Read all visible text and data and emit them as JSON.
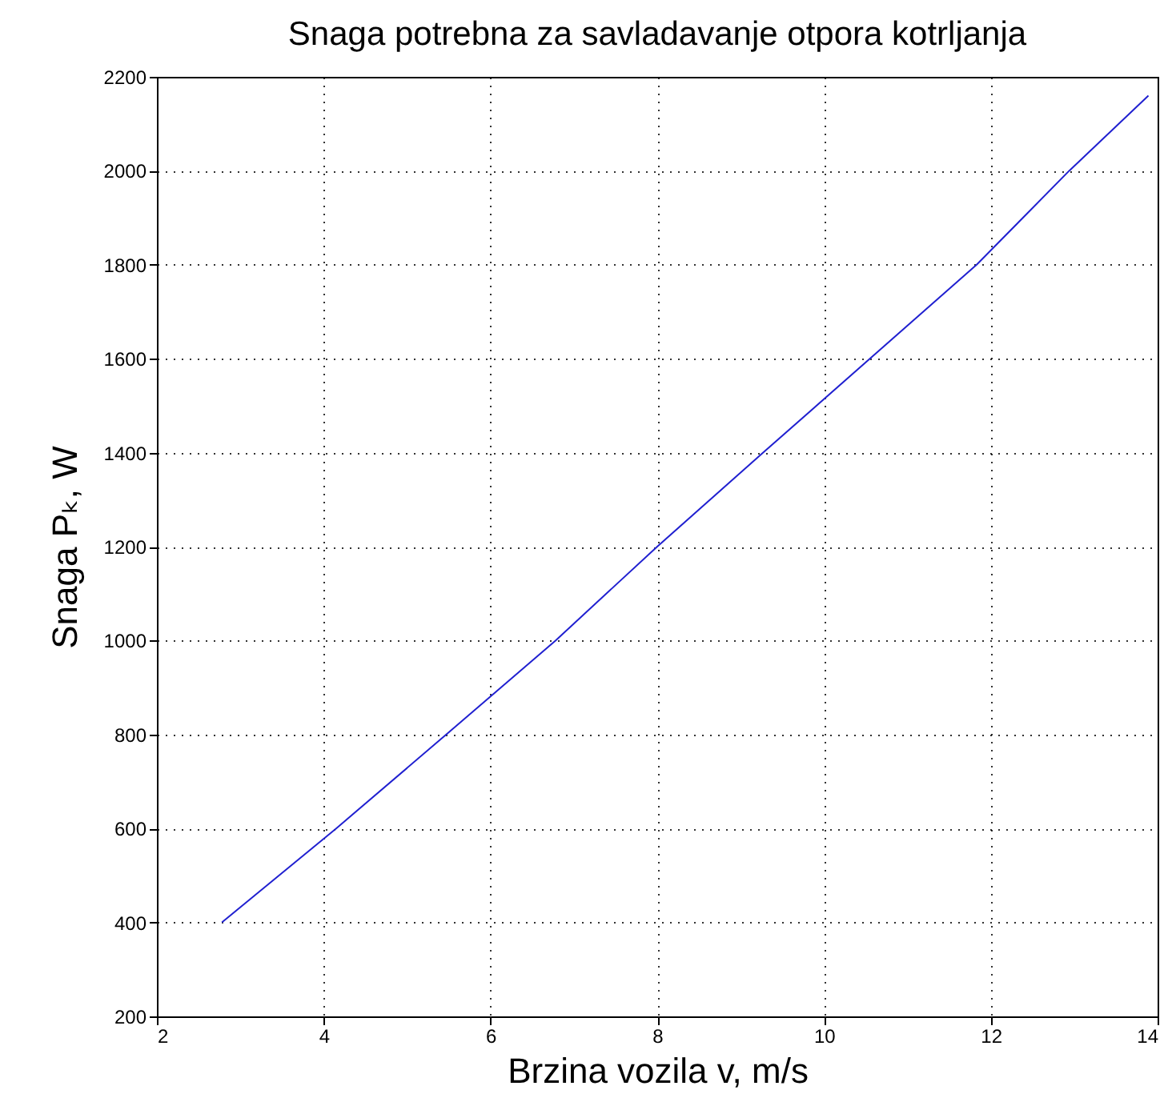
{
  "chart_data": {
    "type": "line",
    "title": "Snaga potrebna za savladavanje otpora kotrljanja",
    "xlabel": "Brzina vozila v, m/s",
    "ylabel": "Snaga Pₖ, W",
    "x": [
      2.78,
      4.15,
      5.47,
      6.78,
      8.0,
      9.27,
      11.83,
      12.94,
      13.89
    ],
    "series": [
      {
        "color": "#2020d0",
        "values": [
          400,
          600,
          800,
          1000,
          1200,
          1400,
          1800,
          2000,
          2160
        ]
      }
    ],
    "xlim": [
      2,
      14
    ],
    "xticks": [
      2,
      4,
      6,
      8,
      10,
      12,
      14
    ],
    "ylim": [
      200,
      2200
    ],
    "yticks": [
      200,
      400,
      600,
      800,
      1000,
      1200,
      1400,
      1600,
      1800,
      2000,
      2200
    ],
    "grid": true,
    "legend": false,
    "marker": "none",
    "line_style": "solid"
  }
}
